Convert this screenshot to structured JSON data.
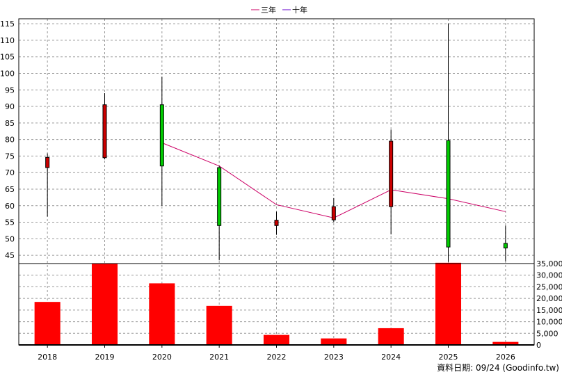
{
  "legend": {
    "items": [
      {
        "label": "三年",
        "color": "#cc0066"
      },
      {
        "label": "十年",
        "color": "#6600cc"
      }
    ]
  },
  "footer": {
    "source": "資料日期: 09/24  (Goodinfo.tw)"
  },
  "chart_data": {
    "type": "candlestick",
    "title": "",
    "years": [
      "2018",
      "2019",
      "2020",
      "2021",
      "2022",
      "2023",
      "2024",
      "2025",
      "2026"
    ],
    "price_axis": {
      "ylim": [
        42.5,
        116.5
      ],
      "ticks": [
        45,
        50,
        55,
        60,
        65,
        70,
        75,
        80,
        85,
        90,
        95,
        100,
        105,
        110,
        115
      ]
    },
    "volume_axis": {
      "ylim": [
        0,
        35000
      ],
      "ticks": [
        0,
        5000,
        10000,
        15000,
        20000,
        25000,
        30000,
        35000
      ],
      "tick_labels": [
        "0",
        "5,000",
        "10,000",
        "15,000",
        "20,000",
        "25,000",
        "30,000",
        "35,000"
      ]
    },
    "candles": [
      {
        "year": "2018",
        "open": 71.5,
        "high": 75.8,
        "low": 56.7,
        "close": 74.6,
        "color": "#cc0000"
      },
      {
        "year": "2019",
        "open": 74.5,
        "high": 94.0,
        "low": 74.0,
        "close": 90.5,
        "color": "#cc0000"
      },
      {
        "year": "2020",
        "open": 90.5,
        "high": 99.0,
        "low": 60.0,
        "close": 72.0,
        "color": "#00cc00"
      },
      {
        "year": "2021",
        "open": 71.5,
        "high": 72.0,
        "low": 43.5,
        "close": 54.0,
        "color": "#00cc00"
      },
      {
        "year": "2022",
        "open": 54.0,
        "high": 58.2,
        "low": 51.2,
        "close": 55.6,
        "color": "#cc0000"
      },
      {
        "year": "2023",
        "open": 55.7,
        "high": 62.3,
        "low": 55.0,
        "close": 59.7,
        "color": "#cc0000"
      },
      {
        "year": "2024",
        "open": 59.7,
        "high": 83.0,
        "low": 51.3,
        "close": 79.5,
        "color": "#cc0000"
      },
      {
        "year": "2025",
        "open": 79.7,
        "high": 115.0,
        "low": 43.0,
        "close": 47.5,
        "color": "#00cc00"
      },
      {
        "year": "2026",
        "open": 48.6,
        "high": 54.0,
        "low": 43.2,
        "close": 47.2,
        "color": "#00cc00"
      }
    ],
    "moving_average": {
      "name": "三年",
      "years": [
        "2020",
        "2021",
        "2022",
        "2023",
        "2024",
        "2025",
        "2026"
      ],
      "values": [
        79.0,
        72.0,
        60.3,
        56.3,
        64.8,
        62.1,
        58.2
      ]
    },
    "volume": [
      18500,
      35000,
      26500,
      16800,
      4300,
      2800,
      7200,
      35500,
      1300
    ]
  }
}
